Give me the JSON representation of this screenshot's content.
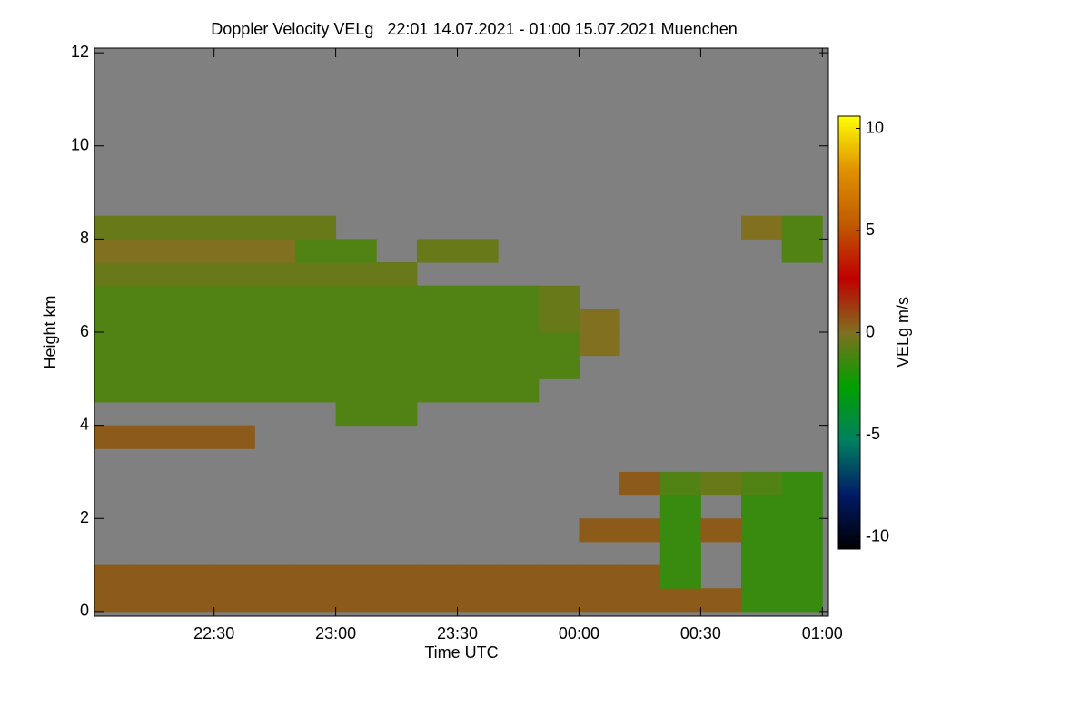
{
  "chart_data": {
    "type": "heatmap",
    "title": "Doppler Velocity VELg   22:01 14.07.2021 - 01:00 15.07.2021 Muenchen",
    "x_label": "Time UTC",
    "y_label": "Height km",
    "colorbar_label": "VELg m/s",
    "background": "#808080",
    "xlim": [
      0.5,
      181.5
    ],
    "xticks": [
      {
        "value": 30,
        "label": "22:30"
      },
      {
        "value": 60,
        "label": "23:00"
      },
      {
        "value": 90,
        "label": "23:30"
      },
      {
        "value": 120,
        "label": "00:00"
      },
      {
        "value": 150,
        "label": "00:30"
      },
      {
        "value": 180,
        "label": "01:00"
      }
    ],
    "ylim": [
      -0.1,
      12.1
    ],
    "yticks": [
      0,
      2,
      4,
      6,
      8,
      10,
      12
    ],
    "clim": [
      -10.6,
      10.6
    ],
    "cticks": [
      -10,
      -5,
      0,
      5,
      10
    ],
    "colormap": [
      "#000000",
      "#001a66",
      "#008060",
      "#00a000",
      "#807020",
      "#c00000",
      "#c05a00",
      "#e09000",
      "#ffff00"
    ],
    "x": [
      5,
      15,
      25,
      35,
      45,
      55,
      65,
      75,
      85,
      95,
      105,
      115,
      125,
      135,
      145,
      155,
      165,
      175
    ],
    "y": [
      0.25,
      0.75,
      1.25,
      1.75,
      2.25,
      2.75,
      3.25,
      3.75,
      4.25,
      4.75,
      5.25,
      5.75,
      6.25,
      6.75,
      7.25,
      7.75,
      8.25,
      8.75,
      9.25,
      9.75,
      10.25,
      10.75,
      11.25,
      11.75
    ],
    "z": [
      [
        0.5,
        0.5,
        0.5,
        0.5,
        0.5,
        0.5,
        0.5,
        0.5,
        0.5,
        0.5,
        0.5,
        0.5,
        0.5,
        0.5,
        0.5,
        0.5,
        -1.5,
        -1.5
      ],
      [
        0.5,
        0.5,
        0.5,
        0.5,
        0.5,
        0.5,
        0.5,
        0.5,
        0.5,
        0.5,
        0.5,
        0.5,
        0.5,
        0.5,
        -1.5,
        null,
        -1.5,
        -1.5
      ],
      [
        null,
        null,
        null,
        null,
        null,
        null,
        null,
        null,
        null,
        null,
        null,
        null,
        null,
        null,
        -1.5,
        null,
        -1.5,
        -1.5
      ],
      [
        null,
        null,
        null,
        null,
        null,
        null,
        null,
        null,
        null,
        null,
        null,
        null,
        0.5,
        0.5,
        -1.5,
        0.5,
        -1.5,
        -1.5
      ],
      [
        null,
        null,
        null,
        null,
        null,
        null,
        null,
        null,
        null,
        null,
        null,
        null,
        null,
        null,
        -1.5,
        null,
        -1.5,
        -1.5
      ],
      [
        null,
        null,
        null,
        null,
        null,
        null,
        null,
        null,
        null,
        null,
        null,
        null,
        null,
        0.5,
        -1,
        -0.5,
        -1,
        -1.5
      ],
      [
        null,
        null,
        null,
        null,
        null,
        null,
        null,
        null,
        null,
        null,
        null,
        null,
        null,
        null,
        null,
        null,
        null,
        null
      ],
      [
        0.5,
        0.5,
        0.5,
        0.5,
        null,
        null,
        null,
        null,
        null,
        null,
        null,
        null,
        null,
        null,
        null,
        null,
        null,
        null
      ],
      [
        null,
        null,
        null,
        null,
        null,
        null,
        -1,
        -1,
        null,
        null,
        null,
        null,
        null,
        null,
        null,
        null,
        null,
        null
      ],
      [
        -1,
        -1,
        -1,
        -1,
        -1,
        -1,
        -1,
        -1,
        -1,
        -1,
        -1,
        null,
        null,
        null,
        null,
        null,
        null,
        null
      ],
      [
        -1,
        -1,
        -1,
        -1,
        -1,
        -1,
        -1,
        -1,
        -1,
        -1,
        -1,
        -1,
        null,
        null,
        null,
        null,
        null,
        null
      ],
      [
        -1,
        -1,
        -1,
        -1,
        -1,
        -1,
        -1,
        -1,
        -1,
        -1,
        -1,
        -1,
        0,
        null,
        null,
        null,
        null,
        null
      ],
      [
        -1,
        -1,
        -1,
        -1,
        -1,
        -1,
        -1,
        -1,
        -1,
        -1,
        -1,
        -0.5,
        0,
        null,
        null,
        null,
        null,
        null
      ],
      [
        -1,
        -1,
        -1,
        -1,
        -1,
        -1,
        -1,
        -1,
        -1,
        -1,
        -1,
        -0.5,
        null,
        null,
        null,
        null,
        null,
        null
      ],
      [
        -0.5,
        -0.5,
        -0.5,
        -0.5,
        -0.5,
        -0.5,
        -0.5,
        -0.5,
        null,
        null,
        null,
        null,
        null,
        null,
        null,
        null,
        null,
        null
      ],
      [
        0,
        0,
        0,
        0,
        0,
        -1,
        -1,
        null,
        -0.5,
        -0.5,
        null,
        null,
        null,
        null,
        null,
        null,
        null,
        -1
      ],
      [
        -0.5,
        -0.5,
        -0.5,
        -0.5,
        -0.5,
        -0.5,
        null,
        null,
        null,
        null,
        null,
        null,
        null,
        null,
        null,
        null,
        0,
        -1
      ],
      [
        null,
        null,
        null,
        null,
        null,
        null,
        null,
        null,
        null,
        null,
        null,
        null,
        null,
        null,
        null,
        null,
        null,
        null
      ],
      [
        null,
        null,
        null,
        null,
        null,
        null,
        null,
        null,
        null,
        null,
        null,
        null,
        null,
        null,
        null,
        null,
        null,
        null
      ],
      [
        null,
        null,
        null,
        null,
        null,
        null,
        null,
        null,
        null,
        null,
        null,
        null,
        null,
        null,
        null,
        null,
        null,
        null
      ],
      [
        null,
        null,
        null,
        null,
        null,
        null,
        null,
        null,
        null,
        null,
        null,
        null,
        null,
        null,
        null,
        null,
        null,
        null
      ],
      [
        null,
        null,
        null,
        null,
        null,
        null,
        null,
        null,
        null,
        null,
        null,
        null,
        null,
        null,
        null,
        null,
        null,
        null
      ],
      [
        null,
        null,
        null,
        null,
        null,
        null,
        null,
        null,
        null,
        null,
        null,
        null,
        null,
        null,
        null,
        null,
        null,
        null
      ],
      [
        null,
        null,
        null,
        null,
        null,
        null,
        null,
        null,
        null,
        null,
        null,
        null,
        null,
        null,
        null,
        null,
        null,
        null
      ]
    ]
  }
}
